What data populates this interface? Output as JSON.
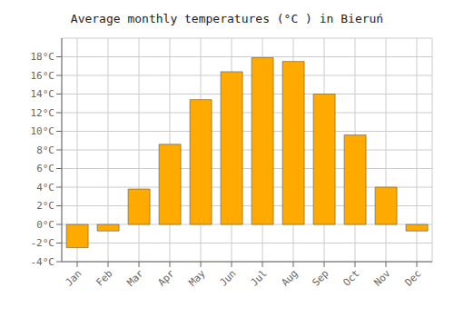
{
  "chart_data": {
    "type": "bar",
    "title": "Average monthly temperatures (°C ) in Bieruń",
    "categories": [
      "Jan",
      "Feb",
      "Mar",
      "Apr",
      "May",
      "Jun",
      "Jul",
      "Aug",
      "Sep",
      "Oct",
      "Nov",
      "Dec"
    ],
    "values": [
      -2.5,
      -0.7,
      3.8,
      8.6,
      13.4,
      16.4,
      17.9,
      17.5,
      14.0,
      9.6,
      4.0,
      -0.7
    ],
    "color": "#FFAA00",
    "ylim": [
      -4,
      20
    ],
    "yticks": [
      {
        "value": -4,
        "label": "-4°C"
      },
      {
        "value": -2,
        "label": "-2°C"
      },
      {
        "value": 0,
        "label": "0°C"
      },
      {
        "value": 2,
        "label": "2°C"
      },
      {
        "value": 4,
        "label": "4°C"
      },
      {
        "value": 6,
        "label": "6°C"
      },
      {
        "value": 8,
        "label": "8°C"
      },
      {
        "value": 10,
        "label": "10°C"
      },
      {
        "value": 12,
        "label": "12°C"
      },
      {
        "value": 14,
        "label": "14°C"
      },
      {
        "value": 16,
        "label": "16°C"
      },
      {
        "value": 18,
        "label": "18°C"
      }
    ],
    "grid": true
  }
}
